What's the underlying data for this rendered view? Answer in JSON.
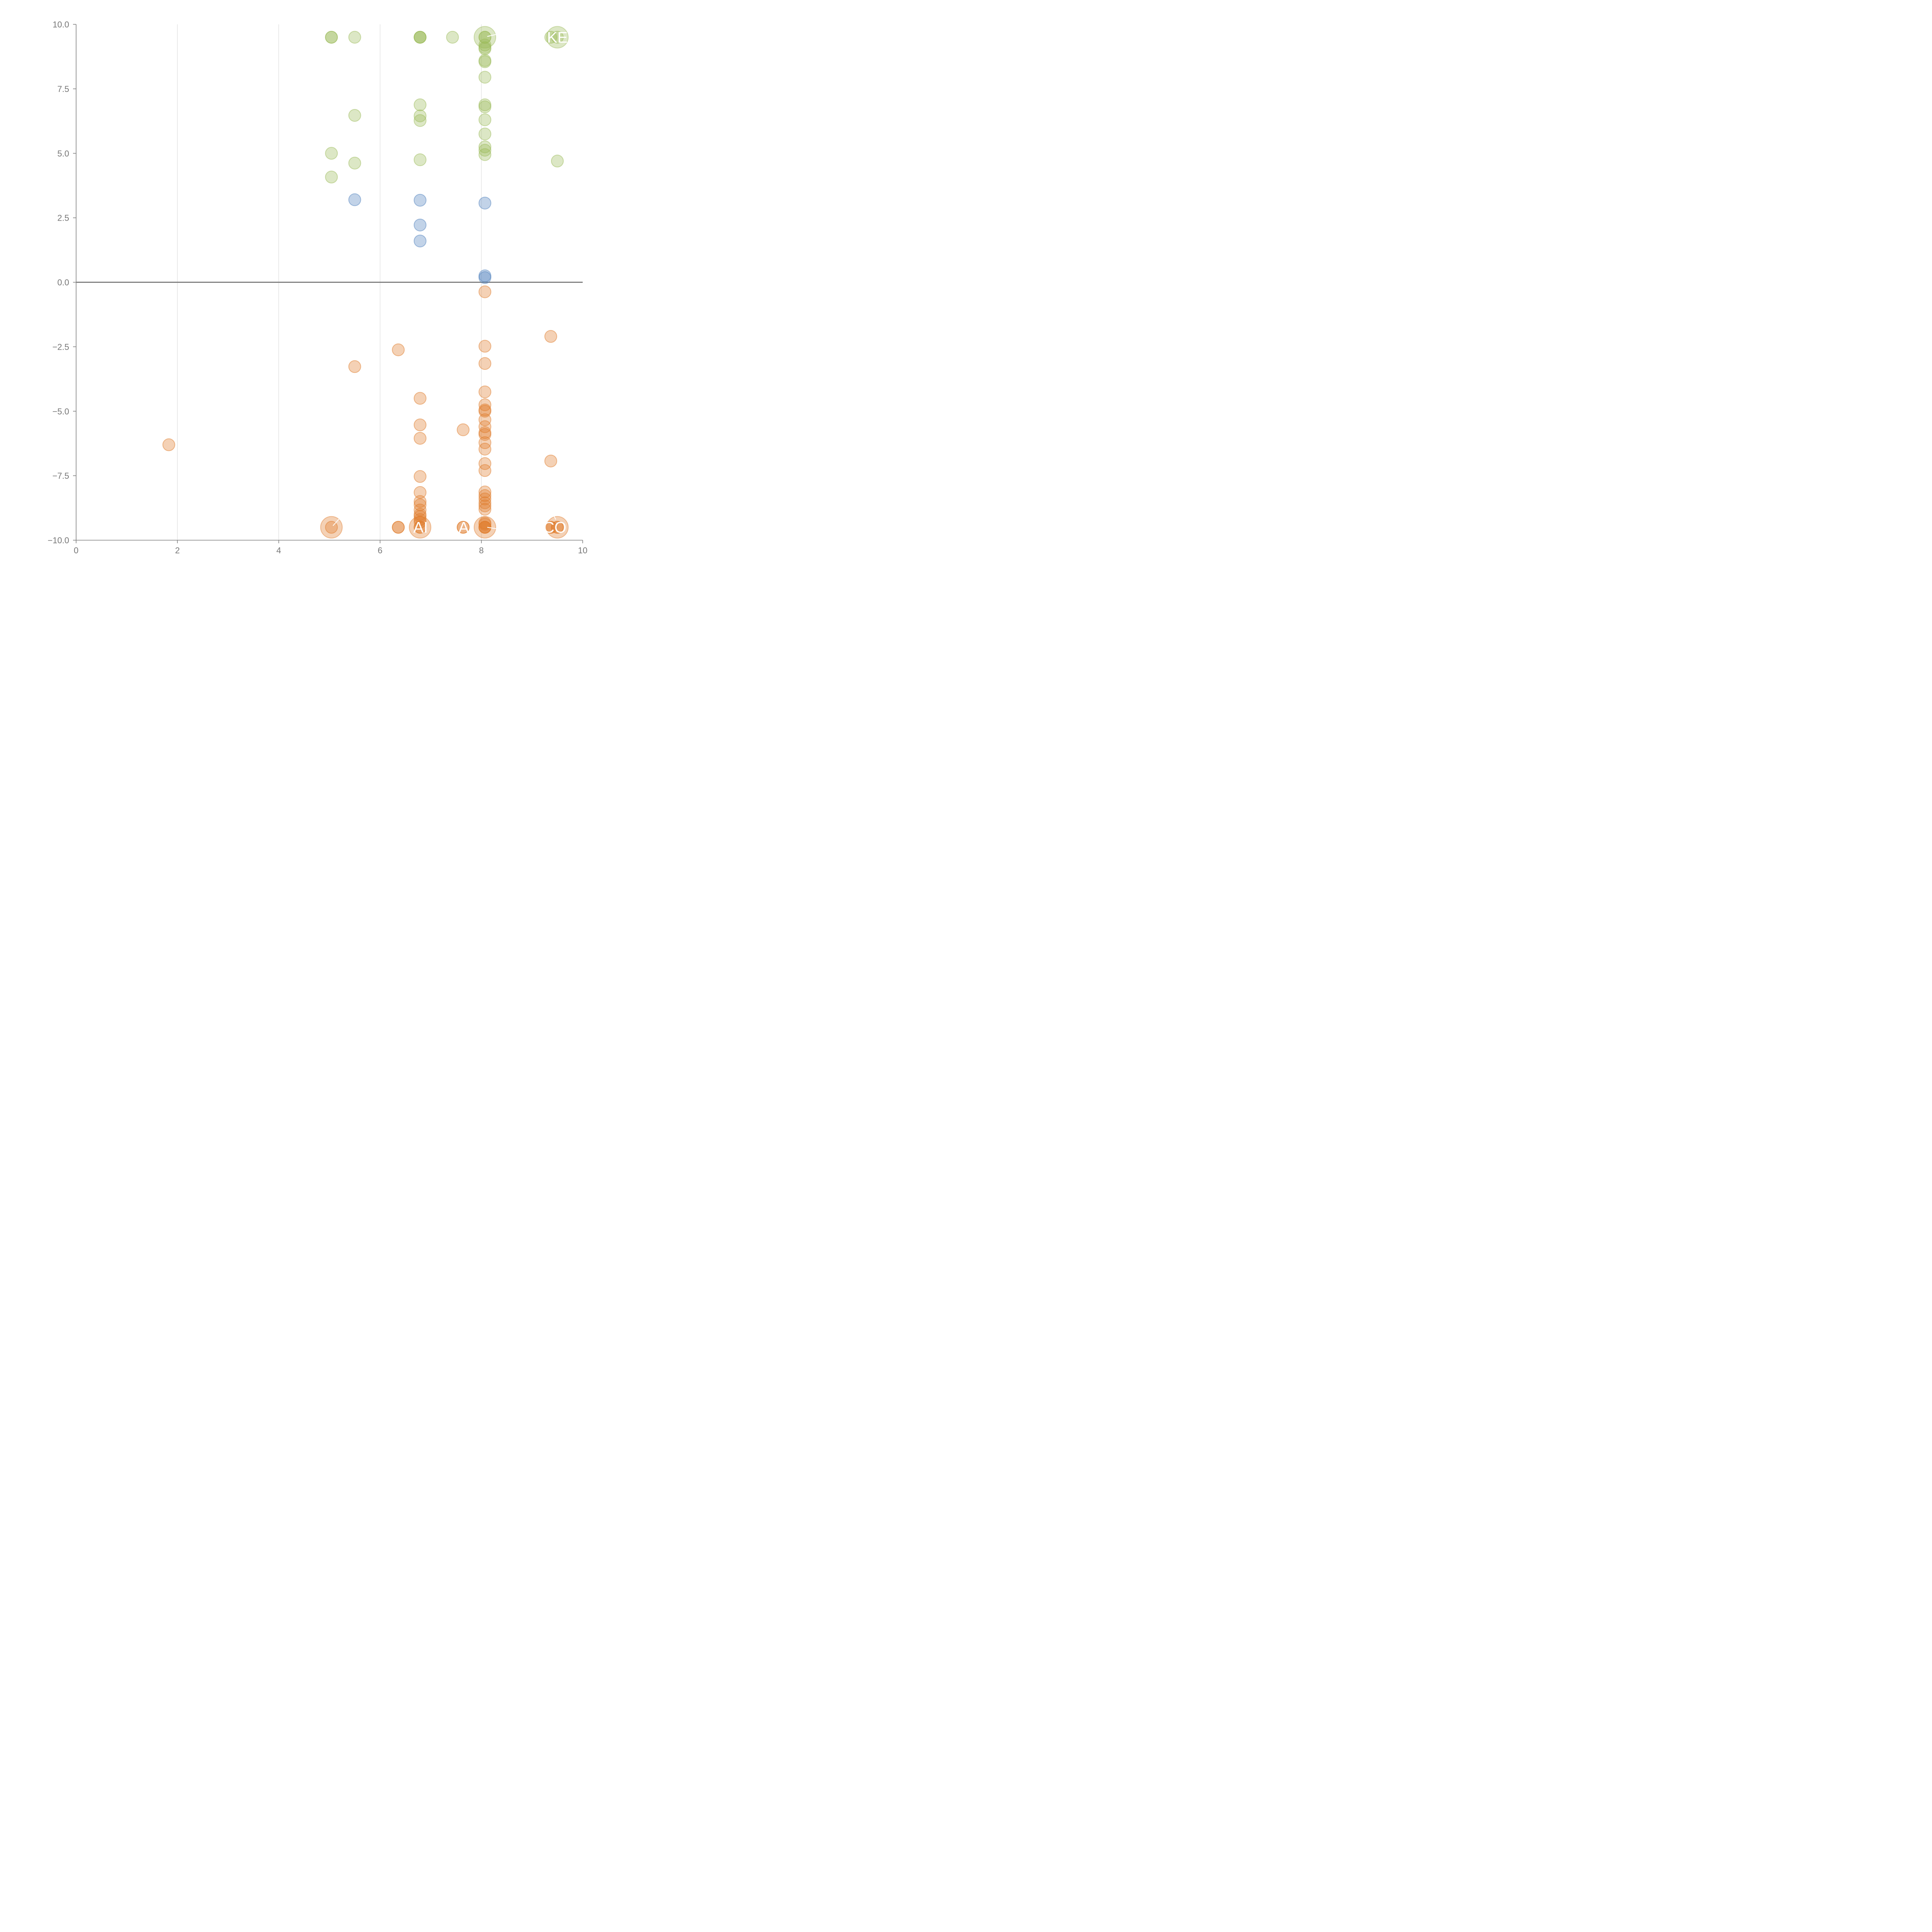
{
  "chart_data": {
    "type": "scatter",
    "title": "",
    "xlabel": "",
    "ylabel": "",
    "xlim": [
      0,
      10
    ],
    "ylim": [
      -10,
      10
    ],
    "x_ticks": [
      "0",
      "2",
      "4",
      "6",
      "8",
      "10"
    ],
    "y_ticks": [
      "−10.0",
      "−7.5",
      "−5.0",
      "−2.5",
      "0.0",
      "2.5",
      "5.0",
      "7.5",
      "10.0"
    ],
    "grid": "vertical",
    "zero_line": true,
    "colors": {
      "high": "#9bbb59",
      "mid": "#4f81bd",
      "low": "#e07b2a"
    },
    "series": [
      {
        "color_key": "high",
        "points": [
          {
            "x": 5.04,
            "y": 9.5
          },
          {
            "x": 5.04,
            "y": 9.5
          },
          {
            "x": 5.5,
            "y": 9.5
          },
          {
            "x": 6.79,
            "y": 9.5
          },
          {
            "x": 6.79,
            "y": 9.5
          },
          {
            "x": 6.79,
            "y": 9.5
          },
          {
            "x": 7.43,
            "y": 9.5
          },
          {
            "x": 8.07,
            "y": 9.5
          },
          {
            "x": 8.07,
            "y": 9.5
          },
          {
            "x": 9.37,
            "y": 9.5
          },
          {
            "x": 9.5,
            "y": 9.5
          },
          {
            "x": 8.07,
            "y": 9.2
          },
          {
            "x": 8.07,
            "y": 9.1
          },
          {
            "x": 8.07,
            "y": 9.05
          },
          {
            "x": 8.07,
            "y": 8.6
          },
          {
            "x": 8.07,
            "y": 8.55
          },
          {
            "x": 8.07,
            "y": 7.95
          },
          {
            "x": 6.79,
            "y": 6.88
          },
          {
            "x": 8.07,
            "y": 6.88
          },
          {
            "x": 8.07,
            "y": 6.8
          },
          {
            "x": 5.5,
            "y": 6.47
          },
          {
            "x": 6.79,
            "y": 6.45
          },
          {
            "x": 6.79,
            "y": 6.27
          },
          {
            "x": 8.07,
            "y": 6.3
          },
          {
            "x": 8.07,
            "y": 5.75
          },
          {
            "x": 8.07,
            "y": 5.25
          },
          {
            "x": 8.07,
            "y": 5.12
          },
          {
            "x": 5.04,
            "y": 5.0
          },
          {
            "x": 8.07,
            "y": 4.95
          },
          {
            "x": 6.79,
            "y": 4.75
          },
          {
            "x": 9.5,
            "y": 4.7
          },
          {
            "x": 5.5,
            "y": 4.62
          },
          {
            "x": 5.04,
            "y": 4.08
          }
        ]
      },
      {
        "color_key": "mid",
        "points": [
          {
            "x": 5.5,
            "y": 3.2
          },
          {
            "x": 6.79,
            "y": 3.18
          },
          {
            "x": 8.07,
            "y": 3.07
          },
          {
            "x": 6.79,
            "y": 2.22
          },
          {
            "x": 6.79,
            "y": 1.6
          },
          {
            "x": 8.07,
            "y": 0.25
          },
          {
            "x": 8.07,
            "y": 0.18
          }
        ]
      },
      {
        "color_key": "low",
        "points": [
          {
            "x": 8.07,
            "y": -0.37
          },
          {
            "x": 9.37,
            "y": -2.1
          },
          {
            "x": 8.07,
            "y": -2.48
          },
          {
            "x": 6.36,
            "y": -2.62
          },
          {
            "x": 8.07,
            "y": -3.15
          },
          {
            "x": 5.5,
            "y": -3.27
          },
          {
            "x": 8.07,
            "y": -4.25
          },
          {
            "x": 6.79,
            "y": -4.5
          },
          {
            "x": 8.07,
            "y": -4.75
          },
          {
            "x": 8.07,
            "y": -4.95
          },
          {
            "x": 8.07,
            "y": -5.0
          },
          {
            "x": 8.07,
            "y": -5.33
          },
          {
            "x": 6.79,
            "y": -5.53
          },
          {
            "x": 8.07,
            "y": -5.6
          },
          {
            "x": 7.64,
            "y": -5.72
          },
          {
            "x": 8.07,
            "y": -5.83
          },
          {
            "x": 8.07,
            "y": -5.9
          },
          {
            "x": 6.79,
            "y": -6.05
          },
          {
            "x": 8.07,
            "y": -6.22
          },
          {
            "x": 1.83,
            "y": -6.3
          },
          {
            "x": 8.07,
            "y": -6.47
          },
          {
            "x": 9.37,
            "y": -6.93
          },
          {
            "x": 8.07,
            "y": -7.03
          },
          {
            "x": 8.07,
            "y": -7.3
          },
          {
            "x": 6.79,
            "y": -7.53
          },
          {
            "x": 8.07,
            "y": -8.13
          },
          {
            "x": 6.79,
            "y": -8.15
          },
          {
            "x": 8.07,
            "y": -8.27
          },
          {
            "x": 8.07,
            "y": -8.4
          },
          {
            "x": 6.79,
            "y": -8.5
          },
          {
            "x": 8.07,
            "y": -8.55
          },
          {
            "x": 6.79,
            "y": -8.63
          },
          {
            "x": 8.07,
            "y": -8.67
          },
          {
            "x": 8.07,
            "y": -8.8
          },
          {
            "x": 6.79,
            "y": -8.83
          },
          {
            "x": 6.79,
            "y": -9.0
          },
          {
            "x": 6.79,
            "y": -9.08
          },
          {
            "x": 6.79,
            "y": -9.2
          },
          {
            "x": 6.79,
            "y": -9.3
          },
          {
            "x": 8.07,
            "y": -9.33
          },
          {
            "x": 8.07,
            "y": -9.38
          },
          {
            "x": 5.04,
            "y": -9.5
          },
          {
            "x": 6.36,
            "y": -9.5
          },
          {
            "x": 6.36,
            "y": -9.5
          },
          {
            "x": 6.79,
            "y": -9.5
          },
          {
            "x": 6.79,
            "y": -9.5
          },
          {
            "x": 7.64,
            "y": -9.5
          },
          {
            "x": 7.64,
            "y": -9.5
          },
          {
            "x": 8.07,
            "y": -9.5
          },
          {
            "x": 8.07,
            "y": -9.5
          },
          {
            "x": 8.07,
            "y": -9.5
          },
          {
            "x": 9.37,
            "y": -9.5
          },
          {
            "x": 9.37,
            "y": -9.5
          },
          {
            "x": 9.5,
            "y": -9.5
          },
          {
            "x": 9.5,
            "y": -9.5
          }
        ]
      }
    ],
    "bubbles": [
      {
        "x": 8.07,
        "y": 9.5,
        "color_key": "high"
      },
      {
        "x": 9.5,
        "y": 9.5,
        "color_key": "high"
      },
      {
        "x": 5.04,
        "y": -9.5,
        "color_key": "low"
      },
      {
        "x": 6.79,
        "y": -9.5,
        "color_key": "low"
      },
      {
        "x": 8.07,
        "y": -9.5,
        "color_key": "low"
      },
      {
        "x": 9.5,
        "y": -9.5,
        "color_key": "low"
      }
    ],
    "annotations": [
      {
        "text": "KE",
        "x": 9.5,
        "y": 9.5
      },
      {
        "text": "AI",
        "x": 6.8,
        "y": -9.5
      },
      {
        "text": "A",
        "x": 7.65,
        "y": -9.5
      },
      {
        "text": "CO",
        "x": 9.45,
        "y": -9.5
      }
    ]
  }
}
